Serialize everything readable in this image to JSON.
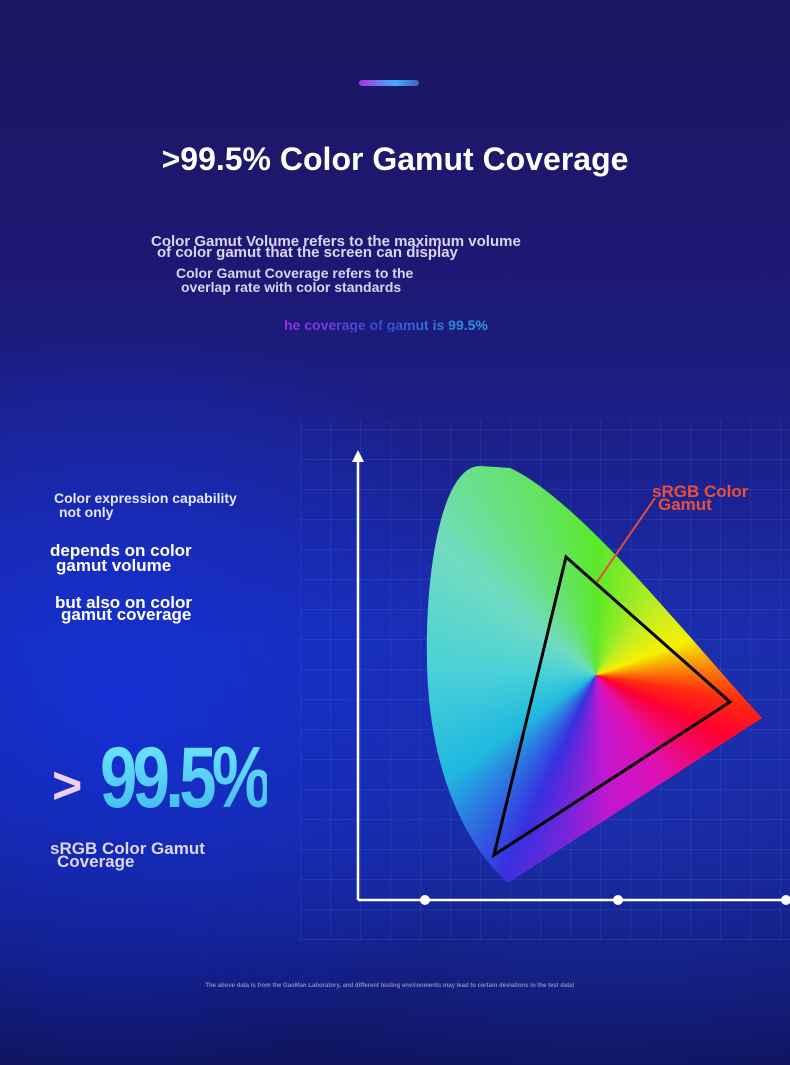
{
  "title": ">99.5% Color Gamut Coverage",
  "description": [
    "Color Gamut Volume refers to the maximum volume",
    "of color gamut that the screen can display",
    "Color Gamut Coverage refers to the",
    "overlap rate with color standards"
  ],
  "tagline": "he coverage of gamut is 99.5%",
  "left_text": [
    "Color expression capability",
    "not only",
    "depends on color",
    "gamut volume",
    "but also on color",
    "gamut coverage"
  ],
  "big_figure": {
    "prefix": ">",
    "value": "99.5%"
  },
  "big_caption": [
    "sRGB Color Gamut",
    "Coverage"
  ],
  "diagram_label": [
    "sRGB Color",
    "Gamut"
  ],
  "footnote": "The above data is from the GaoMan Laboratory, and different testing environments may lead to certain deviations in the test data!"
}
